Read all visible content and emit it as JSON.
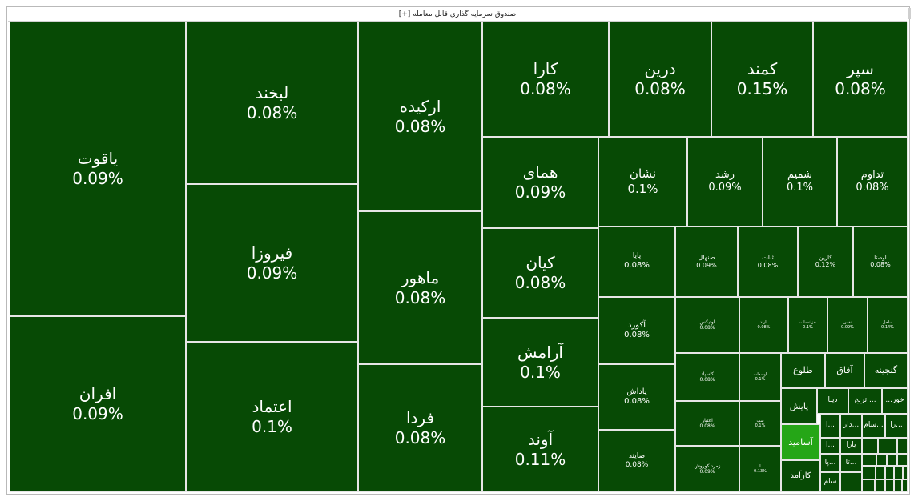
{
  "header": {
    "title": "صندوق سرمایه گذاری قابل معامله",
    "toggle": "[+]"
  },
  "colors": {
    "base": "#074a05",
    "highlight": "#25a617",
    "border": "#e6e6e6"
  },
  "chart_data": {
    "type": "treemap",
    "title": "صندوق سرمایه گذاری قابل معامله",
    "items": [
      {
        "name": "یاقوت",
        "change": "0.09%"
      },
      {
        "name": "افران",
        "change": "0.09%"
      },
      {
        "name": "لبخند",
        "change": "0.08%"
      },
      {
        "name": "فیروزا",
        "change": "0.09%"
      },
      {
        "name": "اعتماد",
        "change": "0.1%"
      },
      {
        "name": "ارکیده",
        "change": "0.08%"
      },
      {
        "name": "ماهور",
        "change": "0.08%"
      },
      {
        "name": "فردا",
        "change": "0.08%"
      },
      {
        "name": "کارا",
        "change": "0.08%"
      },
      {
        "name": "همای",
        "change": "0.09%"
      },
      {
        "name": "کیان",
        "change": "0.08%"
      },
      {
        "name": "آرامش",
        "change": "0.1%"
      },
      {
        "name": "آوند",
        "change": "0.11%"
      },
      {
        "name": "درین",
        "change": "0.08%"
      },
      {
        "name": "کمند",
        "change": "0.15%"
      },
      {
        "name": "سپر",
        "change": "0.08%"
      },
      {
        "name": "نشان",
        "change": "0.1%"
      },
      {
        "name": "رشد",
        "change": "0.09%"
      },
      {
        "name": "شمیم",
        "change": "0.1%"
      },
      {
        "name": "تداوم",
        "change": "0.08%"
      },
      {
        "name": "پایا",
        "change": "0.08%"
      },
      {
        "name": "صنهال",
        "change": "0.09%"
      },
      {
        "name": "ثبات",
        "change": "0.08%"
      },
      {
        "name": "کارین",
        "change": "0.12%"
      },
      {
        "name": "اوصتا",
        "change": "0.08%"
      },
      {
        "name": "آکورد",
        "change": "0.08%"
      },
      {
        "name": "اوتیکس",
        "change": "0.08%"
      },
      {
        "name": "پارند",
        "change": "0.08%"
      },
      {
        "name": "خزانه‌ملت",
        "change": "0.1%"
      },
      {
        "name": "نفس",
        "change": "0.09%"
      },
      {
        "name": "ساحل",
        "change": "0.14%"
      },
      {
        "name": "پاداش",
        "change": "0.08%"
      },
      {
        "name": "کاسپاد",
        "change": "0.08%"
      },
      {
        "name": "اوسعات",
        "change": "0.1%"
      },
      {
        "name": "طلوع",
        "change": ""
      },
      {
        "name": "آفاق",
        "change": ""
      },
      {
        "name": "گنجینه",
        "change": ""
      },
      {
        "name": "صایند",
        "change": "0.08%"
      },
      {
        "name": "اعتبار",
        "change": "0.08%"
      },
      {
        "name": "سپ",
        "change": "0.1%"
      },
      {
        "name": "زمرد کوروش",
        "change": "0.09%"
      },
      {
        "name": "ا",
        "change": "0.13%"
      },
      {
        "name": "پایش",
        "change": ""
      },
      {
        "name": "دیبا",
        "change": ""
      },
      {
        "name": "... ترنج",
        "change": ""
      },
      {
        "name": "خور...",
        "change": ""
      },
      {
        "name": "آسامید",
        "change": ""
      },
      {
        "name": "کارآمد",
        "change": ""
      },
      {
        "name": "...ا",
        "change": ""
      },
      {
        "name": "...دار",
        "change": ""
      },
      {
        "name": "...سام",
        "change": ""
      },
      {
        "name": "...را",
        "change": ""
      },
      {
        "name": "...ا",
        "change": ""
      },
      {
        "name": "یارا",
        "change": ""
      },
      {
        "name": "...پا",
        "change": ""
      },
      {
        "name": "...تا",
        "change": ""
      },
      {
        "name": "سام",
        "change": ""
      }
    ]
  }
}
